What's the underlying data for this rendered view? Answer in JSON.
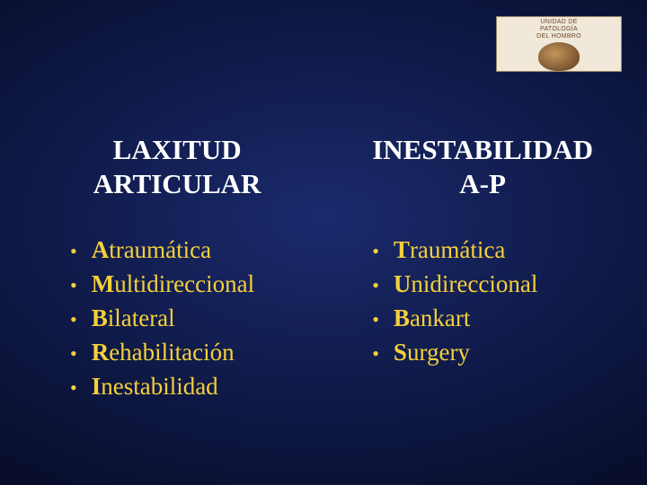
{
  "logo": {
    "line1": "UNIDAD DE",
    "line2": "PATOLOGÍA",
    "line3": "DEL HOMBRO"
  },
  "columns": [
    {
      "title": "LAXITUD\nARTICULAR",
      "items": [
        {
          "first": "A",
          "rest": "traumática"
        },
        {
          "first": "M",
          "rest": "ultidireccional"
        },
        {
          "first": "B",
          "rest": "ilateral"
        },
        {
          "first": "R",
          "rest": "ehabilitación"
        },
        {
          "first": "I",
          "rest": "nestabilidad"
        }
      ]
    },
    {
      "title": "INESTABILIDAD\nA-P",
      "items": [
        {
          "first": "T",
          "rest": "raumática"
        },
        {
          "first": "U",
          "rest": "nidireccional"
        },
        {
          "first": "B",
          "rest": "ankart"
        },
        {
          "first": "S",
          "rest": "urgery"
        }
      ]
    }
  ],
  "style": {
    "title_color": "#ffffff",
    "item_color": "#f5d03a",
    "title_fontsize": 31,
    "item_fontsize": 27,
    "bullet_char": "•"
  }
}
